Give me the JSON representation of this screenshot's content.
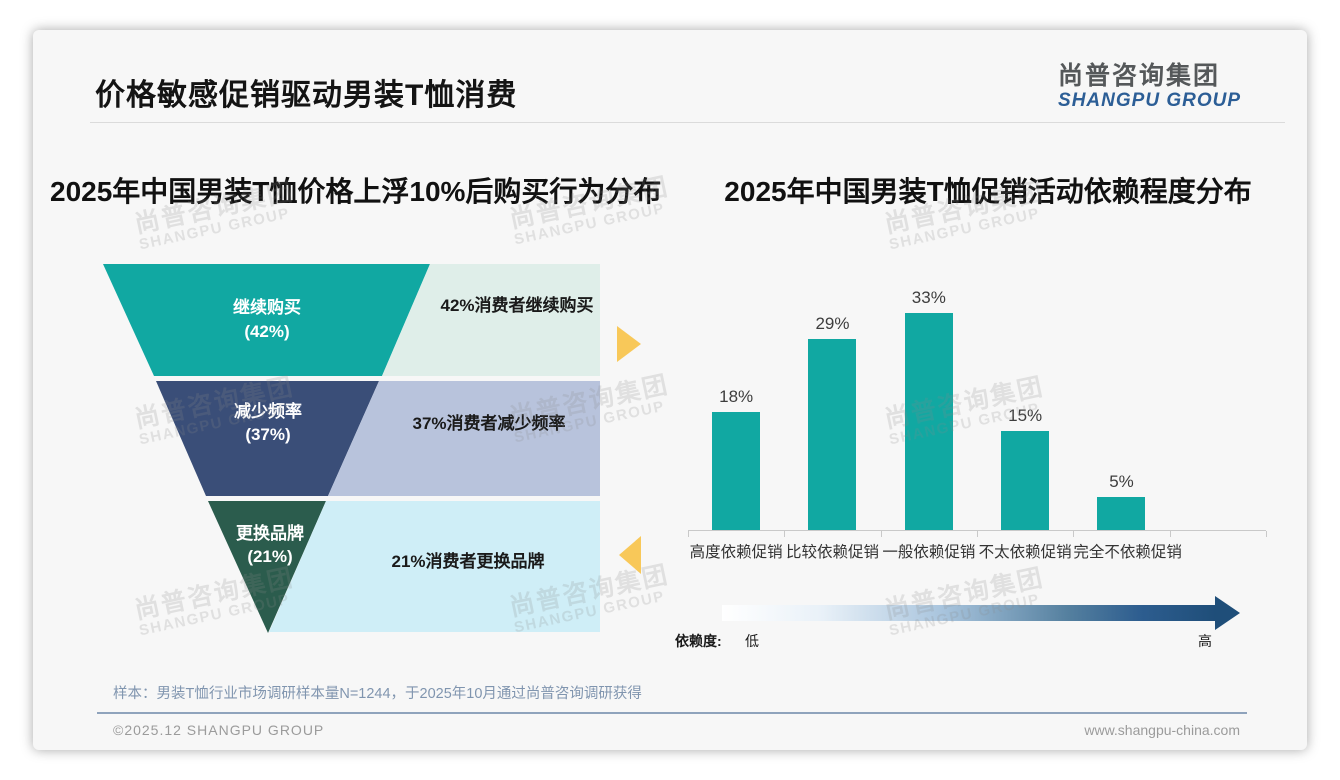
{
  "page": {
    "title": "价格敏感促销驱动男装T恤消费",
    "logo": {
      "cn": "尚普咨询集团",
      "en": "SHANGPU GROUP"
    },
    "watermark": {
      "cn": "尚普咨询集团",
      "en": "SHANGPU GROUP"
    },
    "sample_note": "样本：男装T恤行业市场调研样本量N=1244，于2025年10月通过尚普咨询调研获得",
    "copyright": "©2025.12 SHANGPU GROUP",
    "website": "www.shangpu-china.com"
  },
  "colors": {
    "teal": "#11a8a2",
    "navy": "#3a4e78",
    "dark_green": "#2b5c4d",
    "light_teal_bg": "#dfeee9",
    "light_blue_bg": "#b8c3dc",
    "light_cyan_bg": "#cfeef7",
    "arrow_yellow": "#f8c859",
    "gradient_dark_blue": "#1f4e79",
    "bar_teal": "#11a8a2"
  },
  "chart_data": [
    {
      "type": "funnel",
      "title": "2025年中国男装T恤价格上浮10%后购买行为分布",
      "stages": [
        {
          "label": "继续购买",
          "pct": "(42%)",
          "value": 42,
          "note": "42%消费者继续购买"
        },
        {
          "label": "减少频率",
          "pct": "(37%)",
          "value": 37,
          "note": "37%消费者减少频率"
        },
        {
          "label": "更换品牌",
          "pct": "(21%)",
          "value": 21,
          "note": "21%消费者更换品牌"
        }
      ]
    },
    {
      "type": "bar",
      "title": "2025年中国男装T恤促销活动依赖程度分布",
      "categories": [
        "高度依赖促销",
        "比较依赖促销",
        "一般依赖促销",
        "不太依赖促销",
        "完全不依赖促销"
      ],
      "values": [
        18,
        29,
        33,
        15,
        5
      ],
      "value_labels": [
        "18%",
        "29%",
        "33%",
        "15%",
        "5%"
      ],
      "ylim": [
        0,
        35
      ],
      "grid": false,
      "dependency_scale": {
        "label": "依赖度:",
        "low": "低",
        "high": "高"
      }
    }
  ]
}
